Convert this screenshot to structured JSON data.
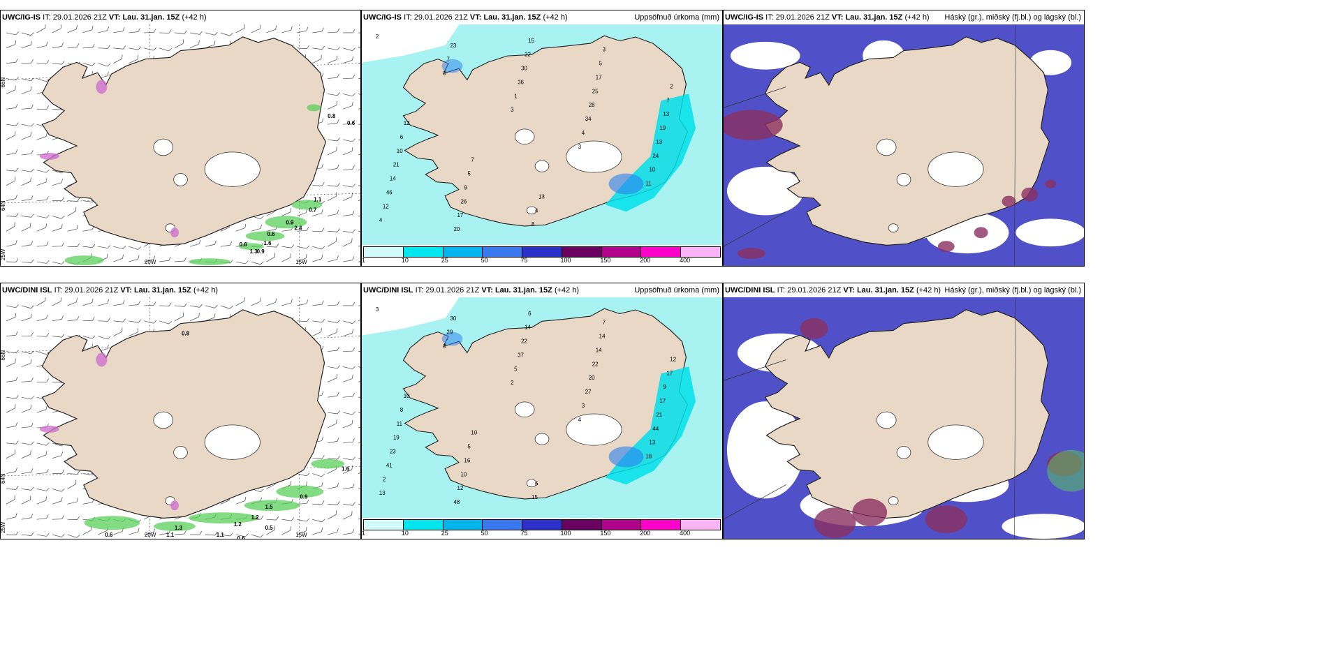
{
  "panels": [
    {
      "model": "UWC/IG-IS",
      "init": "29.01.2026 21Z",
      "valid": "Lau. 31.jan. 15Z",
      "lead": "(+42 h)",
      "right_label": "",
      "type": "wind"
    },
    {
      "model": "UWC/IG-IS",
      "init": "29.01.2026 21Z",
      "valid": "Lau. 31.jan. 15Z",
      "lead": "(+42 h)",
      "right_label": "Uppsöfnuð úrkoma (mm)",
      "type": "precip"
    },
    {
      "model": "UWC/IG-IS",
      "init": "29.01.2026 21Z",
      "valid": "Lau. 31.jan. 15Z",
      "lead": "(+42 h)",
      "right_label": "Háský (gr.), miðský (fj.bl.) og lágský (bl.)",
      "type": "cloud"
    },
    {
      "model": "UWC/DINI ISL",
      "init": "29.01.2026 21Z",
      "valid": "Lau. 31.jan. 15Z",
      "lead": "(+42 h)",
      "right_label": "",
      "type": "wind"
    },
    {
      "model": "UWC/DINI ISL",
      "init": "29.01.2026 21Z",
      "valid": "Lau. 31.jan. 15Z",
      "lead": "(+42 h)",
      "right_label": "Uppsöfnuð úrkoma (mm)",
      "type": "precip"
    },
    {
      "model": "UWC/DINI ISL",
      "init": "29.01.2026 21Z",
      "valid": "Lau. 31.jan. 15Z",
      "lead": "(+42 h)",
      "right_label": "Háský (gr.), miðský (fj.bl.) og lágský (bl.)",
      "type": "cloud"
    }
  ],
  "labels": {
    "it": "IT:",
    "vt": "VT:"
  },
  "graticule": {
    "lon_labels": [
      "20W",
      "15W"
    ],
    "lat_labels": [
      "66N",
      "64N"
    ],
    "lon_left": "25W"
  },
  "colorbar": {
    "ticks": [
      "1",
      "10",
      "25",
      "50",
      "75",
      "100",
      "150",
      "200",
      "400"
    ],
    "colors": [
      "#d2fafa",
      "#00e6ee",
      "#00b4ee",
      "#3a78f0",
      "#2a30c8",
      "#6a0060",
      "#b0008c",
      "#ff00c8",
      "#f8b4f4"
    ]
  },
  "colors": {
    "land": "#ead8c6",
    "precip_light": "#a8f2f2",
    "precip_mid": "#00e0ea",
    "precip_high": "#2a80f0",
    "cloud_low": "#5050c8",
    "cloud_mid": "#8a3060",
    "sea": "#ffffff",
    "green": "#5ad05a"
  },
  "values": {
    "wind_top": [
      "0.8",
      "0.6",
      "1.1",
      "0.7",
      "0.9",
      "2.4",
      "0.6",
      "0.6",
      "1.6",
      "1.3",
      "0.9"
    ],
    "wind_bottom": [
      "0.8",
      "1.6",
      "0.9",
      "1.2",
      "1.5",
      "1.1",
      "0.6",
      "1.2",
      "0.5",
      "0.6",
      "1.1",
      "1.3"
    ],
    "precip_top": [
      "2",
      "3",
      "3",
      "3",
      "11",
      "4",
      "7",
      "1",
      "4",
      "10",
      "12",
      "23",
      "36",
      "34",
      "24",
      "46",
      "20",
      "30",
      "28",
      "13",
      "14",
      "17",
      "22",
      "25",
      "19",
      "21",
      "26",
      "15",
      "17",
      "13",
      "10",
      "9",
      "8",
      "5",
      "7",
      "6",
      "5",
      "4",
      "3",
      "2",
      "12",
      "7",
      "13"
    ],
    "precip_bottom": [
      "3",
      "3",
      "2",
      "4",
      "18",
      "13",
      "29",
      "5",
      "3",
      "13",
      "2",
      "30",
      "37",
      "27",
      "44",
      "41",
      "48",
      "22",
      "20",
      "21",
      "23",
      "12",
      "14",
      "22",
      "17",
      "19",
      "10",
      "6",
      "14",
      "9",
      "11",
      "16",
      "15",
      "14",
      "17",
      "8",
      "5",
      "6",
      "7",
      "12",
      "10",
      "10"
    ]
  }
}
